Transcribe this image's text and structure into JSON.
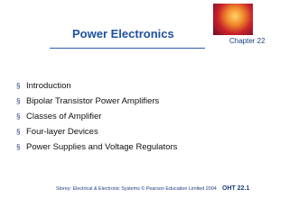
{
  "header": {
    "title": "Power Electronics",
    "chapter": "Chapter 22"
  },
  "bullet_marker": "§",
  "bullets": [
    "Introduction",
    "Bipolar Transistor Power Amplifiers",
    "Classes of Amplifier",
    "Four-layer Devices",
    "Power Supplies and Voltage Regulators"
  ],
  "footer": {
    "citation": "Storey: Electrical & Electronic Systems © Pearson Education Limited 2004",
    "page": "OHT 22.1"
  }
}
